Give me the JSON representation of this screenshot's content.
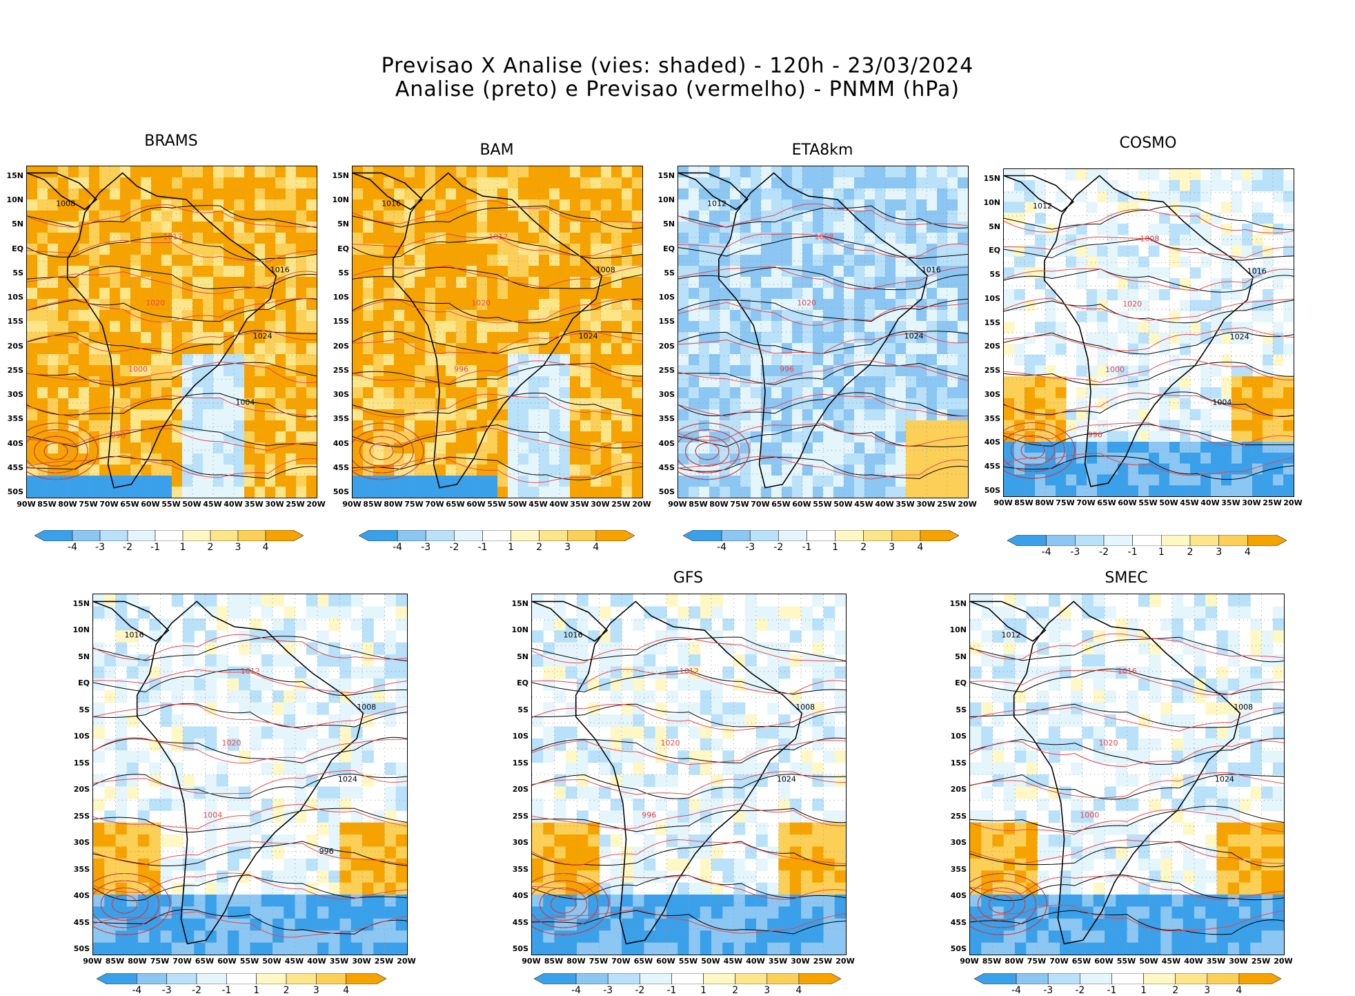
{
  "title": {
    "line1": "Previsao X Analise (vies: shaded) - 120h - 23/03/2024",
    "line2": "Analise (preto) e Previsao (vermelho) - PNMM (hPa)"
  },
  "colors": {
    "neg4": "#3aa0ea",
    "neg3": "#8cc6f2",
    "neg2": "#b9e1fa",
    "neg1": "#e4f6fc",
    "zero": "#ffffff",
    "pos1": "#fff7c4",
    "pos2": "#fde68a",
    "pos3": "#fcd057",
    "pos4": "#f6a300",
    "analysis": "#000000",
    "forecast": "#e8454a"
  },
  "axes": {
    "lat_labels": [
      "15N",
      "10N",
      "5N",
      "EQ",
      "5S",
      "10S",
      "15S",
      "20S",
      "25S",
      "30S",
      "35S",
      "40S",
      "45S",
      "50S"
    ],
    "lon_labels": [
      "90W",
      "85W",
      "80W",
      "75W",
      "70W",
      "65W",
      "60W",
      "55W",
      "50W",
      "45W",
      "40W",
      "35W",
      "30W",
      "25W",
      "20W"
    ]
  },
  "colorbar": {
    "labels": [
      "-4",
      "-3",
      "-2",
      "-1",
      "1",
      "2",
      "3",
      "4"
    ]
  },
  "panels": [
    {
      "name": "BRAMS",
      "bias": "warm",
      "isobars": [
        "1008",
        "1012",
        "1016",
        "1020",
        "1024",
        "1000",
        "1004",
        "996"
      ]
    },
    {
      "name": "BAM",
      "bias": "warm",
      "isobars": [
        "1016",
        "1012",
        "1008",
        "1020",
        "1024",
        "996"
      ]
    },
    {
      "name": "ETA8km",
      "bias": "cold",
      "isobars": [
        "1012",
        "1008",
        "1016",
        "1020",
        "1024",
        "996"
      ]
    },
    {
      "name": "COSMO",
      "bias": "mixed",
      "isobars": [
        "1012",
        "1008",
        "1016",
        "1020",
        "1024",
        "1000",
        "1004",
        "996"
      ]
    },
    {
      "name": "",
      "bias": "mixed",
      "isobars": [
        "1016",
        "1012",
        "1008",
        "1020",
        "1024",
        "1004",
        "996"
      ]
    },
    {
      "name": "GFS",
      "bias": "mixed",
      "isobars": [
        "1016",
        "1012",
        "1008",
        "1020",
        "1024",
        "996"
      ]
    },
    {
      "name": "SMEC",
      "bias": "mixed",
      "isobars": [
        "1012",
        "1016",
        "1008",
        "1020",
        "1024",
        "1000"
      ]
    }
  ]
}
